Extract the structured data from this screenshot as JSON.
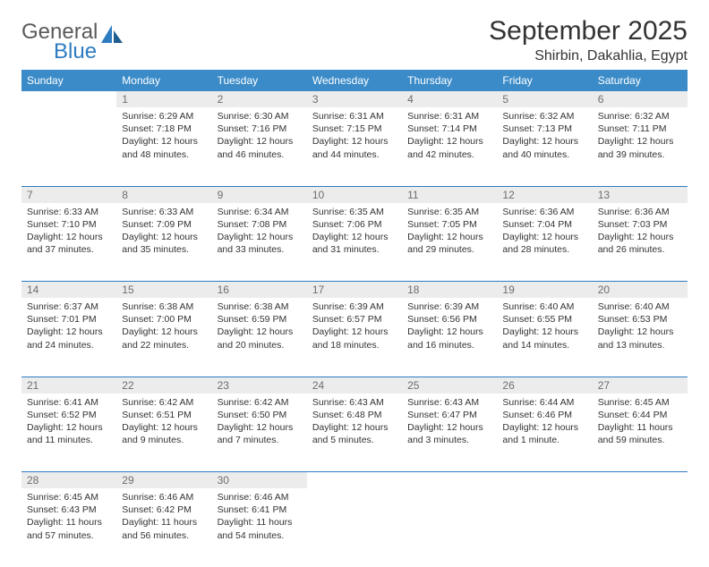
{
  "logo": {
    "word1": "General",
    "word2": "Blue"
  },
  "title": "September 2025",
  "location": "Shirbin, Dakahlia, Egypt",
  "colors": {
    "header_bg": "#3b8bc8",
    "header_text": "#ffffff",
    "rule": "#2d7cc1",
    "daynum_bg": "#ececec",
    "daynum_text": "#6e6e6e",
    "body_text": "#333333",
    "logo_gray": "#5a5a5a",
    "logo_blue": "#2d7cc1",
    "page_bg": "#ffffff"
  },
  "daysOfWeek": [
    "Sunday",
    "Monday",
    "Tuesday",
    "Wednesday",
    "Thursday",
    "Friday",
    "Saturday"
  ],
  "weeks": [
    [
      null,
      {
        "n": "1",
        "sr": "Sunrise: 6:29 AM",
        "ss": "Sunset: 7:18 PM",
        "dl": "Daylight: 12 hours and 48 minutes."
      },
      {
        "n": "2",
        "sr": "Sunrise: 6:30 AM",
        "ss": "Sunset: 7:16 PM",
        "dl": "Daylight: 12 hours and 46 minutes."
      },
      {
        "n": "3",
        "sr": "Sunrise: 6:31 AM",
        "ss": "Sunset: 7:15 PM",
        "dl": "Daylight: 12 hours and 44 minutes."
      },
      {
        "n": "4",
        "sr": "Sunrise: 6:31 AM",
        "ss": "Sunset: 7:14 PM",
        "dl": "Daylight: 12 hours and 42 minutes."
      },
      {
        "n": "5",
        "sr": "Sunrise: 6:32 AM",
        "ss": "Sunset: 7:13 PM",
        "dl": "Daylight: 12 hours and 40 minutes."
      },
      {
        "n": "6",
        "sr": "Sunrise: 6:32 AM",
        "ss": "Sunset: 7:11 PM",
        "dl": "Daylight: 12 hours and 39 minutes."
      }
    ],
    [
      {
        "n": "7",
        "sr": "Sunrise: 6:33 AM",
        "ss": "Sunset: 7:10 PM",
        "dl": "Daylight: 12 hours and 37 minutes."
      },
      {
        "n": "8",
        "sr": "Sunrise: 6:33 AM",
        "ss": "Sunset: 7:09 PM",
        "dl": "Daylight: 12 hours and 35 minutes."
      },
      {
        "n": "9",
        "sr": "Sunrise: 6:34 AM",
        "ss": "Sunset: 7:08 PM",
        "dl": "Daylight: 12 hours and 33 minutes."
      },
      {
        "n": "10",
        "sr": "Sunrise: 6:35 AM",
        "ss": "Sunset: 7:06 PM",
        "dl": "Daylight: 12 hours and 31 minutes."
      },
      {
        "n": "11",
        "sr": "Sunrise: 6:35 AM",
        "ss": "Sunset: 7:05 PM",
        "dl": "Daylight: 12 hours and 29 minutes."
      },
      {
        "n": "12",
        "sr": "Sunrise: 6:36 AM",
        "ss": "Sunset: 7:04 PM",
        "dl": "Daylight: 12 hours and 28 minutes."
      },
      {
        "n": "13",
        "sr": "Sunrise: 6:36 AM",
        "ss": "Sunset: 7:03 PM",
        "dl": "Daylight: 12 hours and 26 minutes."
      }
    ],
    [
      {
        "n": "14",
        "sr": "Sunrise: 6:37 AM",
        "ss": "Sunset: 7:01 PM",
        "dl": "Daylight: 12 hours and 24 minutes."
      },
      {
        "n": "15",
        "sr": "Sunrise: 6:38 AM",
        "ss": "Sunset: 7:00 PM",
        "dl": "Daylight: 12 hours and 22 minutes."
      },
      {
        "n": "16",
        "sr": "Sunrise: 6:38 AM",
        "ss": "Sunset: 6:59 PM",
        "dl": "Daylight: 12 hours and 20 minutes."
      },
      {
        "n": "17",
        "sr": "Sunrise: 6:39 AM",
        "ss": "Sunset: 6:57 PM",
        "dl": "Daylight: 12 hours and 18 minutes."
      },
      {
        "n": "18",
        "sr": "Sunrise: 6:39 AM",
        "ss": "Sunset: 6:56 PM",
        "dl": "Daylight: 12 hours and 16 minutes."
      },
      {
        "n": "19",
        "sr": "Sunrise: 6:40 AM",
        "ss": "Sunset: 6:55 PM",
        "dl": "Daylight: 12 hours and 14 minutes."
      },
      {
        "n": "20",
        "sr": "Sunrise: 6:40 AM",
        "ss": "Sunset: 6:53 PM",
        "dl": "Daylight: 12 hours and 13 minutes."
      }
    ],
    [
      {
        "n": "21",
        "sr": "Sunrise: 6:41 AM",
        "ss": "Sunset: 6:52 PM",
        "dl": "Daylight: 12 hours and 11 minutes."
      },
      {
        "n": "22",
        "sr": "Sunrise: 6:42 AM",
        "ss": "Sunset: 6:51 PM",
        "dl": "Daylight: 12 hours and 9 minutes."
      },
      {
        "n": "23",
        "sr": "Sunrise: 6:42 AM",
        "ss": "Sunset: 6:50 PM",
        "dl": "Daylight: 12 hours and 7 minutes."
      },
      {
        "n": "24",
        "sr": "Sunrise: 6:43 AM",
        "ss": "Sunset: 6:48 PM",
        "dl": "Daylight: 12 hours and 5 minutes."
      },
      {
        "n": "25",
        "sr": "Sunrise: 6:43 AM",
        "ss": "Sunset: 6:47 PM",
        "dl": "Daylight: 12 hours and 3 minutes."
      },
      {
        "n": "26",
        "sr": "Sunrise: 6:44 AM",
        "ss": "Sunset: 6:46 PM",
        "dl": "Daylight: 12 hours and 1 minute."
      },
      {
        "n": "27",
        "sr": "Sunrise: 6:45 AM",
        "ss": "Sunset: 6:44 PM",
        "dl": "Daylight: 11 hours and 59 minutes."
      }
    ],
    [
      {
        "n": "28",
        "sr": "Sunrise: 6:45 AM",
        "ss": "Sunset: 6:43 PM",
        "dl": "Daylight: 11 hours and 57 minutes."
      },
      {
        "n": "29",
        "sr": "Sunrise: 6:46 AM",
        "ss": "Sunset: 6:42 PM",
        "dl": "Daylight: 11 hours and 56 minutes."
      },
      {
        "n": "30",
        "sr": "Sunrise: 6:46 AM",
        "ss": "Sunset: 6:41 PM",
        "dl": "Daylight: 11 hours and 54 minutes."
      },
      null,
      null,
      null,
      null
    ]
  ]
}
